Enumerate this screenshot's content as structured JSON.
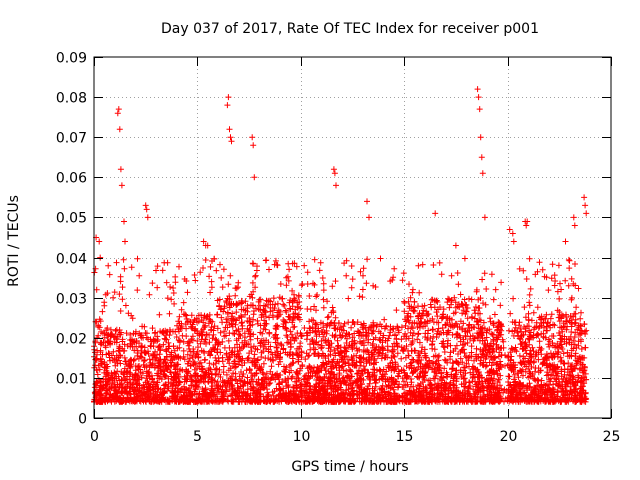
{
  "chart_data": {
    "type": "scatter",
    "title": "Day 037 of 2017, Rate Of TEC Index for receiver p001",
    "xlabel": "GPS time / hours",
    "ylabel": "ROTI / TECUs",
    "xlim": [
      0,
      25
    ],
    "ylim": [
      0,
      0.09
    ],
    "x_ticks": [
      0,
      5,
      10,
      15,
      20,
      25
    ],
    "x_tick_labels": [
      "0",
      "5",
      "10",
      "15",
      "20",
      "25"
    ],
    "y_ticks": [
      0,
      0.01,
      0.02,
      0.03,
      0.04,
      0.05,
      0.06,
      0.07,
      0.08,
      0.09
    ],
    "y_tick_labels": [
      "0",
      "0.01",
      "0.02",
      "0.03",
      "0.04",
      "0.05",
      "0.06",
      "0.07",
      "0.08",
      "0.09"
    ],
    "grid": true,
    "marker": "+",
    "series_color": "#ff0000",
    "series": [
      {
        "name": "ROTI",
        "x": [
          0.1,
          0.25,
          0.3,
          1.15,
          1.2,
          1.25,
          1.3,
          1.35,
          1.45,
          1.5,
          2.5,
          2.55,
          2.6,
          5.3,
          5.4,
          5.5,
          6.45,
          6.5,
          6.55,
          6.6,
          6.65,
          7.65,
          7.7,
          7.75,
          11.6,
          11.65,
          11.7,
          13.2,
          13.3,
          16.5,
          17.5,
          18.55,
          18.6,
          18.65,
          18.7,
          18.75,
          18.8,
          18.9,
          20.1,
          20.25,
          20.3,
          20.85,
          20.9,
          20.95,
          22.8,
          23.2,
          23.25,
          23.7,
          23.75,
          23.8
        ],
        "y": [
          0.045,
          0.044,
          0.04,
          0.076,
          0.077,
          0.072,
          0.062,
          0.058,
          0.049,
          0.044,
          0.053,
          0.052,
          0.05,
          0.044,
          0.043,
          0.043,
          0.078,
          0.08,
          0.072,
          0.07,
          0.069,
          0.07,
          0.068,
          0.06,
          0.062,
          0.061,
          0.058,
          0.054,
          0.05,
          0.051,
          0.043,
          0.082,
          0.08,
          0.077,
          0.07,
          0.065,
          0.061,
          0.05,
          0.047,
          0.046,
          0.044,
          0.049,
          0.048,
          0.049,
          0.044,
          0.05,
          0.048,
          0.055,
          0.053,
          0.051
        ]
      }
    ]
  }
}
